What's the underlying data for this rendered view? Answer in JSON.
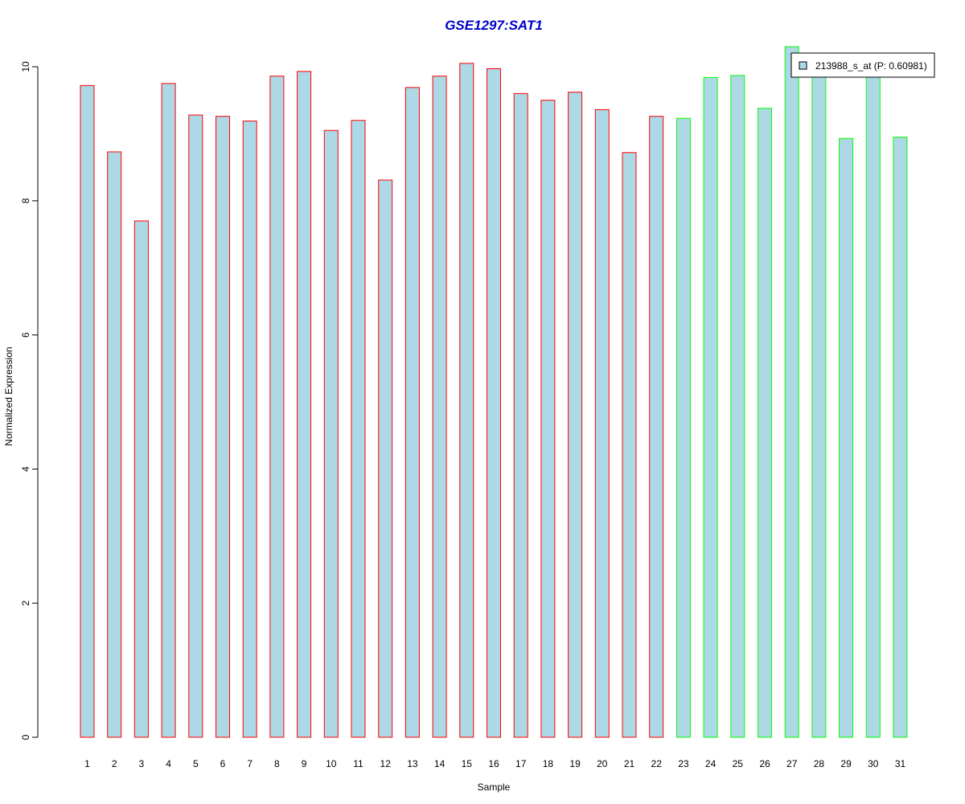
{
  "chart_data": {
    "type": "bar",
    "title": "GSE1297:SAT1",
    "xlabel": "Sample",
    "ylabel": "Normalized Expression",
    "categories": [
      "1",
      "2",
      "3",
      "4",
      "5",
      "6",
      "7",
      "8",
      "9",
      "10",
      "11",
      "12",
      "13",
      "14",
      "15",
      "16",
      "17",
      "18",
      "19",
      "20",
      "21",
      "22",
      "23",
      "24",
      "25",
      "26",
      "27",
      "28",
      "29",
      "30",
      "31"
    ],
    "series": [
      {
        "name": "213988_s_at (P: 0.60981)",
        "values": [
          9.72,
          8.73,
          7.7,
          9.75,
          9.28,
          9.26,
          9.19,
          9.86,
          9.93,
          9.05,
          9.2,
          8.31,
          9.69,
          9.86,
          10.05,
          9.97,
          9.6,
          9.5,
          9.62,
          9.36,
          8.72,
          9.26,
          9.23,
          9.84,
          9.87,
          9.38,
          10.3,
          9.9,
          8.93,
          9.95,
          8.95
        ]
      }
    ],
    "group_of_bar": [
      "red",
      "red",
      "red",
      "red",
      "red",
      "red",
      "red",
      "red",
      "red",
      "red",
      "red",
      "red",
      "red",
      "red",
      "red",
      "red",
      "red",
      "red",
      "red",
      "red",
      "red",
      "red",
      "green",
      "green",
      "green",
      "green",
      "green",
      "green",
      "green",
      "green",
      "green"
    ],
    "yticks": [
      0,
      2,
      4,
      6,
      8,
      10
    ],
    "ylim": [
      0,
      10.3
    ],
    "grid": false,
    "legend_position": "top-right",
    "colors": {
      "title": "#0000cc",
      "bar_fill": "#add8e6",
      "border_red": "#ff0000",
      "border_green": "#00ff00",
      "axis": "#000000"
    }
  }
}
